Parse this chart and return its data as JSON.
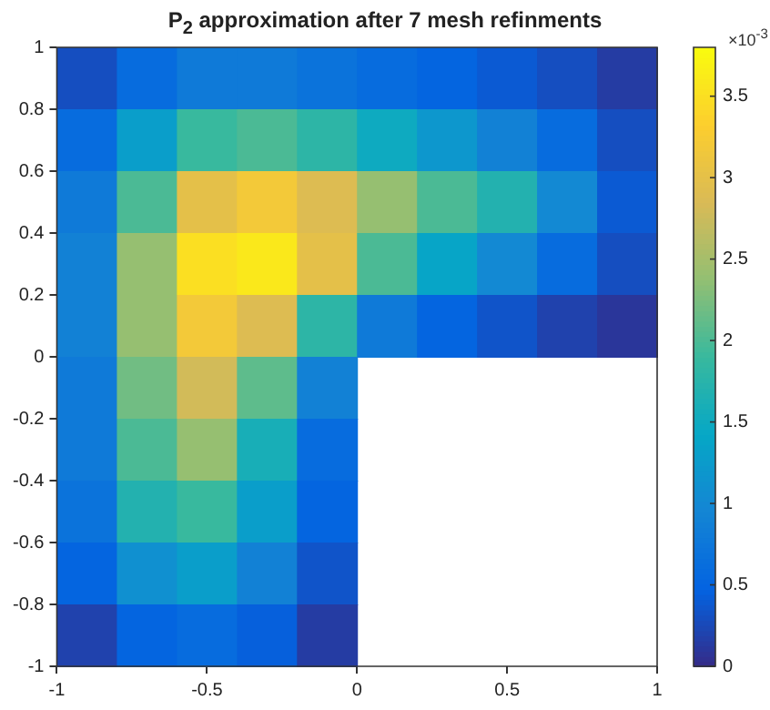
{
  "chart_data": {
    "type": "heatmap",
    "title": "P$_{2}$ approximation after 7 mesh refinments",
    "clabel": "×10$^{-3}$",
    "x": [
      -0.9,
      -0.7,
      -0.5,
      -0.3,
      -0.1,
      0.1,
      0.3,
      0.5,
      0.7,
      0.9
    ],
    "y": [
      0.9,
      0.7,
      0.5,
      0.3,
      0.1,
      -0.1,
      -0.3,
      -0.5,
      -0.7,
      -0.9
    ],
    "cells": [
      [
        0.3,
        0.6,
        0.8,
        0.8,
        0.7,
        0.6,
        0.5,
        0.4,
        0.3,
        0.15
      ],
      [
        0.6,
        1.3,
        1.9,
        2.0,
        1.8,
        1.5,
        1.2,
        0.9,
        0.6,
        0.3
      ],
      [
        0.8,
        2.0,
        3.0,
        3.2,
        2.9,
        2.4,
        2.0,
        1.7,
        1.0,
        0.4
      ],
      [
        0.9,
        2.4,
        3.5,
        3.6,
        3.0,
        2.0,
        1.4,
        1.0,
        0.6,
        0.3
      ],
      [
        0.9,
        2.4,
        3.2,
        2.9,
        1.8,
        0.8,
        0.5,
        0.35,
        0.2,
        0.1
      ],
      [
        0.8,
        2.2,
        2.8,
        2.1,
        0.9,
        null,
        null,
        null,
        null,
        null
      ],
      [
        0.8,
        2.0,
        2.4,
        1.6,
        0.6,
        null,
        null,
        null,
        null,
        null
      ],
      [
        0.7,
        1.7,
        1.9,
        1.3,
        0.5,
        null,
        null,
        null,
        null,
        null
      ],
      [
        0.5,
        1.1,
        1.3,
        0.9,
        0.35,
        null,
        null,
        null,
        null,
        null
      ],
      [
        0.2,
        0.5,
        0.6,
        0.45,
        0.15,
        null,
        null,
        null,
        null,
        null
      ]
    ],
    "xlim": [
      -1,
      1
    ],
    "xticks": [
      -1,
      -0.5,
      0,
      0.5,
      1
    ],
    "ylim": [
      -1,
      1
    ],
    "yticks": [
      -1,
      -0.8,
      -0.6,
      -0.4,
      -0.2,
      0,
      0.2,
      0.4,
      0.6,
      0.8,
      1
    ],
    "clim": [
      0,
      3.8
    ],
    "cticks": [
      0,
      0.5,
      1,
      1.5,
      2,
      2.5,
      3,
      3.5
    ]
  }
}
